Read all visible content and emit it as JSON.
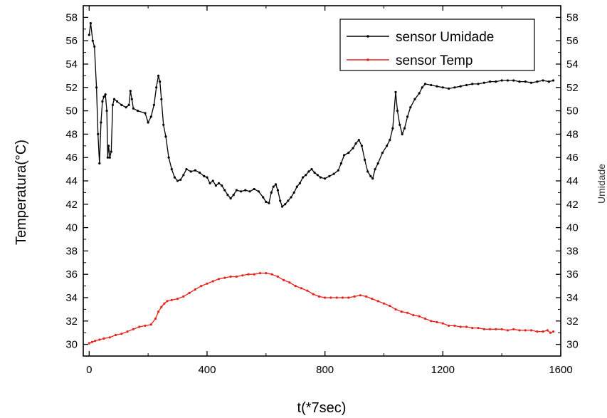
{
  "chart_data": {
    "type": "line",
    "xlabel": "t(*7sec)",
    "ylabel": "Temperatura(°C)",
    "ylabel_right": "Umidade",
    "xlim": [
      -20,
      1600
    ],
    "ylim": [
      29,
      59
    ],
    "x_ticks": [
      0,
      400,
      800,
      1200,
      1600
    ],
    "y_ticks": [
      30,
      32,
      34,
      36,
      38,
      40,
      42,
      44,
      46,
      48,
      50,
      52,
      54,
      56,
      58
    ],
    "grid": false,
    "legend_position": "top-right",
    "colors": {
      "sensor_umidade": "#000000",
      "sensor_temp": "#e8221c",
      "axis": "#000000"
    },
    "series": [
      {
        "name": "sensor Umidade",
        "color": "#000000",
        "points": [
          [
            0,
            56.5
          ],
          [
            5,
            57.5
          ],
          [
            12,
            56
          ],
          [
            18,
            55.5
          ],
          [
            25,
            52
          ],
          [
            30,
            48
          ],
          [
            35,
            45.5
          ],
          [
            40,
            49
          ],
          [
            45,
            50.8
          ],
          [
            50,
            51.2
          ],
          [
            55,
            51.4
          ],
          [
            60,
            50
          ],
          [
            63,
            46
          ],
          [
            66,
            47
          ],
          [
            70,
            46
          ],
          [
            75,
            46.5
          ],
          [
            80,
            50.5
          ],
          [
            85,
            51
          ],
          [
            95,
            50.8
          ],
          [
            110,
            50.5
          ],
          [
            125,
            50.3
          ],
          [
            135,
            50.5
          ],
          [
            140,
            51.7
          ],
          [
            145,
            51
          ],
          [
            150,
            50.2
          ],
          [
            165,
            50
          ],
          [
            190,
            49.8
          ],
          [
            200,
            49
          ],
          [
            210,
            49.5
          ],
          [
            220,
            50.5
          ],
          [
            228,
            52
          ],
          [
            235,
            53
          ],
          [
            240,
            52.5
          ],
          [
            245,
            51
          ],
          [
            252,
            48.8
          ],
          [
            260,
            47.8
          ],
          [
            270,
            46
          ],
          [
            280,
            45
          ],
          [
            290,
            44.3
          ],
          [
            300,
            44
          ],
          [
            310,
            44.1
          ],
          [
            320,
            44.5
          ],
          [
            330,
            45
          ],
          [
            345,
            44.8
          ],
          [
            360,
            44.9
          ],
          [
            375,
            44.7
          ],
          [
            390,
            44.4
          ],
          [
            400,
            44.3
          ],
          [
            410,
            43.8
          ],
          [
            420,
            44
          ],
          [
            430,
            43.6
          ],
          [
            440,
            43.8
          ],
          [
            450,
            43.6
          ],
          [
            460,
            43.2
          ],
          [
            470,
            42.8
          ],
          [
            480,
            42.5
          ],
          [
            490,
            42.8
          ],
          [
            500,
            43.2
          ],
          [
            515,
            43.1
          ],
          [
            530,
            43.2
          ],
          [
            545,
            43.1
          ],
          [
            560,
            43.3
          ],
          [
            575,
            43.1
          ],
          [
            590,
            42.6
          ],
          [
            600,
            42.2
          ],
          [
            610,
            42.1
          ],
          [
            618,
            43
          ],
          [
            625,
            43.5
          ],
          [
            633,
            43.7
          ],
          [
            640,
            43.2
          ],
          [
            648,
            42.3
          ],
          [
            655,
            41.8
          ],
          [
            665,
            42
          ],
          [
            675,
            42.3
          ],
          [
            685,
            42.6
          ],
          [
            695,
            43
          ],
          [
            705,
            43.5
          ],
          [
            715,
            43.8
          ],
          [
            725,
            44.3
          ],
          [
            735,
            44.5
          ],
          [
            745,
            44.8
          ],
          [
            755,
            45
          ],
          [
            765,
            44.7
          ],
          [
            775,
            44.5
          ],
          [
            785,
            44.3
          ],
          [
            800,
            44.2
          ],
          [
            815,
            44.4
          ],
          [
            830,
            44.6
          ],
          [
            845,
            44.9
          ],
          [
            855,
            45.5
          ],
          [
            865,
            46.2
          ],
          [
            880,
            46.4
          ],
          [
            895,
            46.8
          ],
          [
            905,
            47.2
          ],
          [
            915,
            47.5
          ],
          [
            925,
            47
          ],
          [
            935,
            45.8
          ],
          [
            945,
            44.8
          ],
          [
            955,
            44.4
          ],
          [
            962,
            44.2
          ],
          [
            970,
            45
          ],
          [
            980,
            45.5
          ],
          [
            995,
            46.4
          ],
          [
            1010,
            47
          ],
          [
            1020,
            47.5
          ],
          [
            1030,
            48.5
          ],
          [
            1040,
            51.6
          ],
          [
            1046,
            50
          ],
          [
            1054,
            48.8
          ],
          [
            1062,
            48
          ],
          [
            1070,
            48.5
          ],
          [
            1080,
            49.5
          ],
          [
            1090,
            50.3
          ],
          [
            1105,
            51
          ],
          [
            1120,
            51.5
          ],
          [
            1130,
            52
          ],
          [
            1140,
            52.3
          ],
          [
            1160,
            52.2
          ],
          [
            1180,
            52.1
          ],
          [
            1200,
            52
          ],
          [
            1220,
            51.9
          ],
          [
            1240,
            52
          ],
          [
            1260,
            52.1
          ],
          [
            1280,
            52.2
          ],
          [
            1300,
            52.3
          ],
          [
            1320,
            52.3
          ],
          [
            1340,
            52.4
          ],
          [
            1360,
            52.5
          ],
          [
            1380,
            52.5
          ],
          [
            1400,
            52.6
          ],
          [
            1420,
            52.6
          ],
          [
            1440,
            52.6
          ],
          [
            1460,
            52.5
          ],
          [
            1480,
            52.5
          ],
          [
            1500,
            52.4
          ],
          [
            1520,
            52.5
          ],
          [
            1540,
            52.6
          ],
          [
            1560,
            52.5
          ],
          [
            1575,
            52.6
          ]
        ]
      },
      {
        "name": "sensor Temp",
        "color": "#e8221c",
        "points": [
          [
            0,
            30.1
          ],
          [
            10,
            30.2
          ],
          [
            20,
            30.3
          ],
          [
            35,
            30.4
          ],
          [
            50,
            30.5
          ],
          [
            70,
            30.6
          ],
          [
            90,
            30.8
          ],
          [
            110,
            30.9
          ],
          [
            130,
            31.1
          ],
          [
            150,
            31.3
          ],
          [
            170,
            31.5
          ],
          [
            190,
            31.6
          ],
          [
            210,
            31.7
          ],
          [
            225,
            32.2
          ],
          [
            235,
            32.8
          ],
          [
            245,
            33.2
          ],
          [
            255,
            33.5
          ],
          [
            265,
            33.7
          ],
          [
            280,
            33.8
          ],
          [
            300,
            33.9
          ],
          [
            320,
            34.1
          ],
          [
            340,
            34.4
          ],
          [
            360,
            34.7
          ],
          [
            380,
            35
          ],
          [
            400,
            35.2
          ],
          [
            420,
            35.4
          ],
          [
            440,
            35.6
          ],
          [
            460,
            35.7
          ],
          [
            480,
            35.8
          ],
          [
            500,
            35.8
          ],
          [
            520,
            35.9
          ],
          [
            540,
            36
          ],
          [
            560,
            36
          ],
          [
            580,
            36.1
          ],
          [
            600,
            36.1
          ],
          [
            620,
            36
          ],
          [
            640,
            35.8
          ],
          [
            660,
            35.5
          ],
          [
            680,
            35.3
          ],
          [
            700,
            35
          ],
          [
            720,
            34.8
          ],
          [
            740,
            34.6
          ],
          [
            760,
            34.3
          ],
          [
            780,
            34.1
          ],
          [
            800,
            34
          ],
          [
            820,
            34
          ],
          [
            840,
            34
          ],
          [
            860,
            34
          ],
          [
            880,
            34
          ],
          [
            900,
            34.1
          ],
          [
            920,
            34.2
          ],
          [
            940,
            34.1
          ],
          [
            960,
            33.9
          ],
          [
            980,
            33.7
          ],
          [
            1000,
            33.5
          ],
          [
            1020,
            33.3
          ],
          [
            1040,
            33
          ],
          [
            1060,
            32.8
          ],
          [
            1080,
            32.7
          ],
          [
            1100,
            32.5
          ],
          [
            1120,
            32.4
          ],
          [
            1140,
            32.2
          ],
          [
            1160,
            32
          ],
          [
            1180,
            31.9
          ],
          [
            1200,
            31.8
          ],
          [
            1220,
            31.6
          ],
          [
            1240,
            31.6
          ],
          [
            1260,
            31.5
          ],
          [
            1280,
            31.5
          ],
          [
            1300,
            31.4
          ],
          [
            1320,
            31.4
          ],
          [
            1340,
            31.3
          ],
          [
            1360,
            31.3
          ],
          [
            1380,
            31.3
          ],
          [
            1400,
            31.3
          ],
          [
            1420,
            31.2
          ],
          [
            1440,
            31.3
          ],
          [
            1460,
            31.2
          ],
          [
            1480,
            31.2
          ],
          [
            1500,
            31.2
          ],
          [
            1520,
            31.1
          ],
          [
            1540,
            31.1
          ],
          [
            1555,
            31.2
          ],
          [
            1565,
            31
          ],
          [
            1575,
            31.1
          ]
        ]
      }
    ]
  }
}
